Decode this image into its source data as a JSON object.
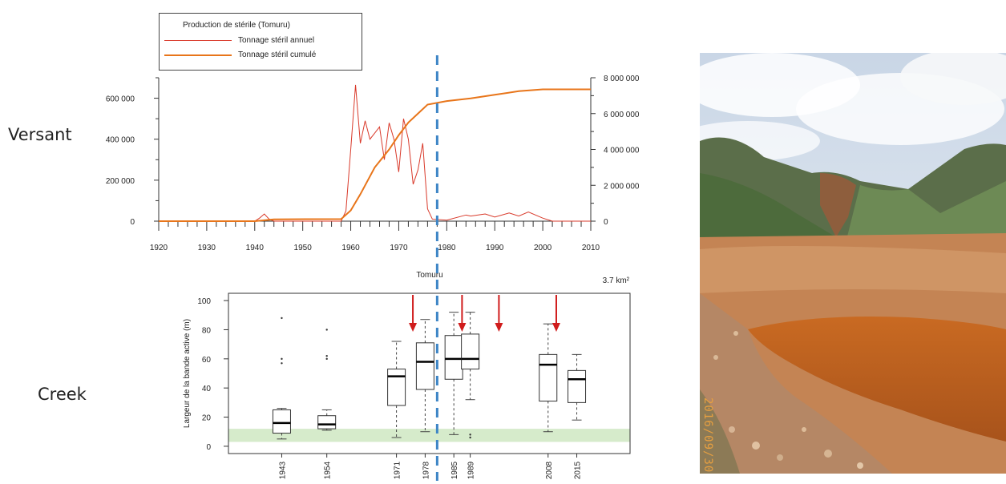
{
  "labels": {
    "versant": "Versant",
    "creek": "Creek"
  },
  "photo": {
    "date_stamp": "2016/09/30"
  },
  "chart_data": [
    {
      "type": "line",
      "legend": {
        "title": "Production de stérile (Tomuru)",
        "entries": [
          "Tonnage stéril annuel",
          "Tonnage stéril cumulé"
        ],
        "position": "top-left"
      },
      "x_ticks": [
        "1920",
        "1930",
        "1940",
        "1950",
        "1960",
        "1970",
        "1980",
        "1990",
        "2000",
        "2010"
      ],
      "xlim": [
        1920,
        2010
      ],
      "y_left_ticks": [
        "0",
        "200 000",
        "400 000",
        "600 000"
      ],
      "ylim_left": [
        0,
        700000
      ],
      "y_right_ticks": [
        "0",
        "2 000 000",
        "4 000 000",
        "6 000 000",
        "8 000 000"
      ],
      "ylim_right": [
        0,
        8000000
      ],
      "series": [
        {
          "name": "Tonnage stéril annuel",
          "axis": "left",
          "color": "#d93a2b",
          "x": [
            1920,
            1940,
            1941,
            1942,
            1943,
            1944,
            1958,
            1959,
            1960,
            1961,
            1962,
            1963,
            1964,
            1965,
            1966,
            1967,
            1968,
            1969,
            1970,
            1971,
            1972,
            1973,
            1974,
            1975,
            1976,
            1977,
            1980,
            1984,
            1985,
            1988,
            1990,
            1993,
            1995,
            1997,
            2000,
            2002,
            2010
          ],
          "y": [
            0,
            0,
            15000,
            35000,
            10000,
            0,
            0,
            50000,
            350000,
            665000,
            380000,
            490000,
            400000,
            430000,
            460000,
            300000,
            480000,
            400000,
            240000,
            500000,
            400000,
            180000,
            250000,
            380000,
            60000,
            10000,
            5000,
            30000,
            25000,
            35000,
            20000,
            40000,
            25000,
            45000,
            15000,
            0,
            0
          ]
        },
        {
          "name": "Tonnage stéril cumulé",
          "axis": "right",
          "color": "#e8751a",
          "x": [
            1920,
            1940,
            1944,
            1958,
            1960,
            1962,
            1965,
            1968,
            1970,
            1972,
            1974,
            1976,
            1980,
            1985,
            1990,
            1995,
            2000,
            2005,
            2010
          ],
          "y": [
            0,
            0,
            100000,
            120000,
            600000,
            1500000,
            3000000,
            4000000,
            4800000,
            5500000,
            6000000,
            6500000,
            6700000,
            6850000,
            7050000,
            7250000,
            7350000,
            7350000,
            7350000
          ]
        }
      ]
    },
    {
      "type": "box",
      "title": "Tomuru",
      "annotation": "3.7 km²",
      "ylabel": "Largeur de la bande active (m)",
      "ylim": [
        -5,
        105
      ],
      "y_ticks": [
        "0",
        "20",
        "40",
        "60",
        "80",
        "100"
      ],
      "reference_band": [
        3,
        12
      ],
      "boxes": [
        {
          "label": "1943",
          "min": 5,
          "q1": 9,
          "median": 16,
          "q3": 25,
          "max": 26,
          "outliers": [
            57,
            60,
            88
          ]
        },
        {
          "label": "1954",
          "min": 11,
          "q1": 12,
          "median": 15,
          "q3": 21,
          "max": 25,
          "outliers": [
            60,
            62,
            80
          ]
        },
        {
          "label": "1971",
          "min": 6,
          "q1": 28,
          "median": 48,
          "q3": 53,
          "max": 72,
          "outliers": []
        },
        {
          "label": "1978",
          "min": 10,
          "q1": 39,
          "median": 58,
          "q3": 71,
          "max": 87,
          "outliers": []
        },
        {
          "label": "1985",
          "min": 8,
          "q1": 46,
          "median": 60,
          "q3": 76,
          "max": 92,
          "outliers": []
        },
        {
          "label": "1989",
          "min": 32,
          "q1": 53,
          "median": 60,
          "q3": 77,
          "max": 92,
          "outliers": [
            6,
            8
          ]
        },
        {
          "label": "2008",
          "min": 10,
          "q1": 31,
          "median": 56,
          "q3": 63,
          "max": 84,
          "outliers": []
        },
        {
          "label": "2015",
          "min": 18,
          "q1": 30,
          "median": 46,
          "q3": 52,
          "max": 63,
          "outliers": []
        }
      ],
      "arrow_years": [
        1975,
        1987,
        1996,
        2010
      ],
      "dashed_line_year": 1978
    }
  ]
}
